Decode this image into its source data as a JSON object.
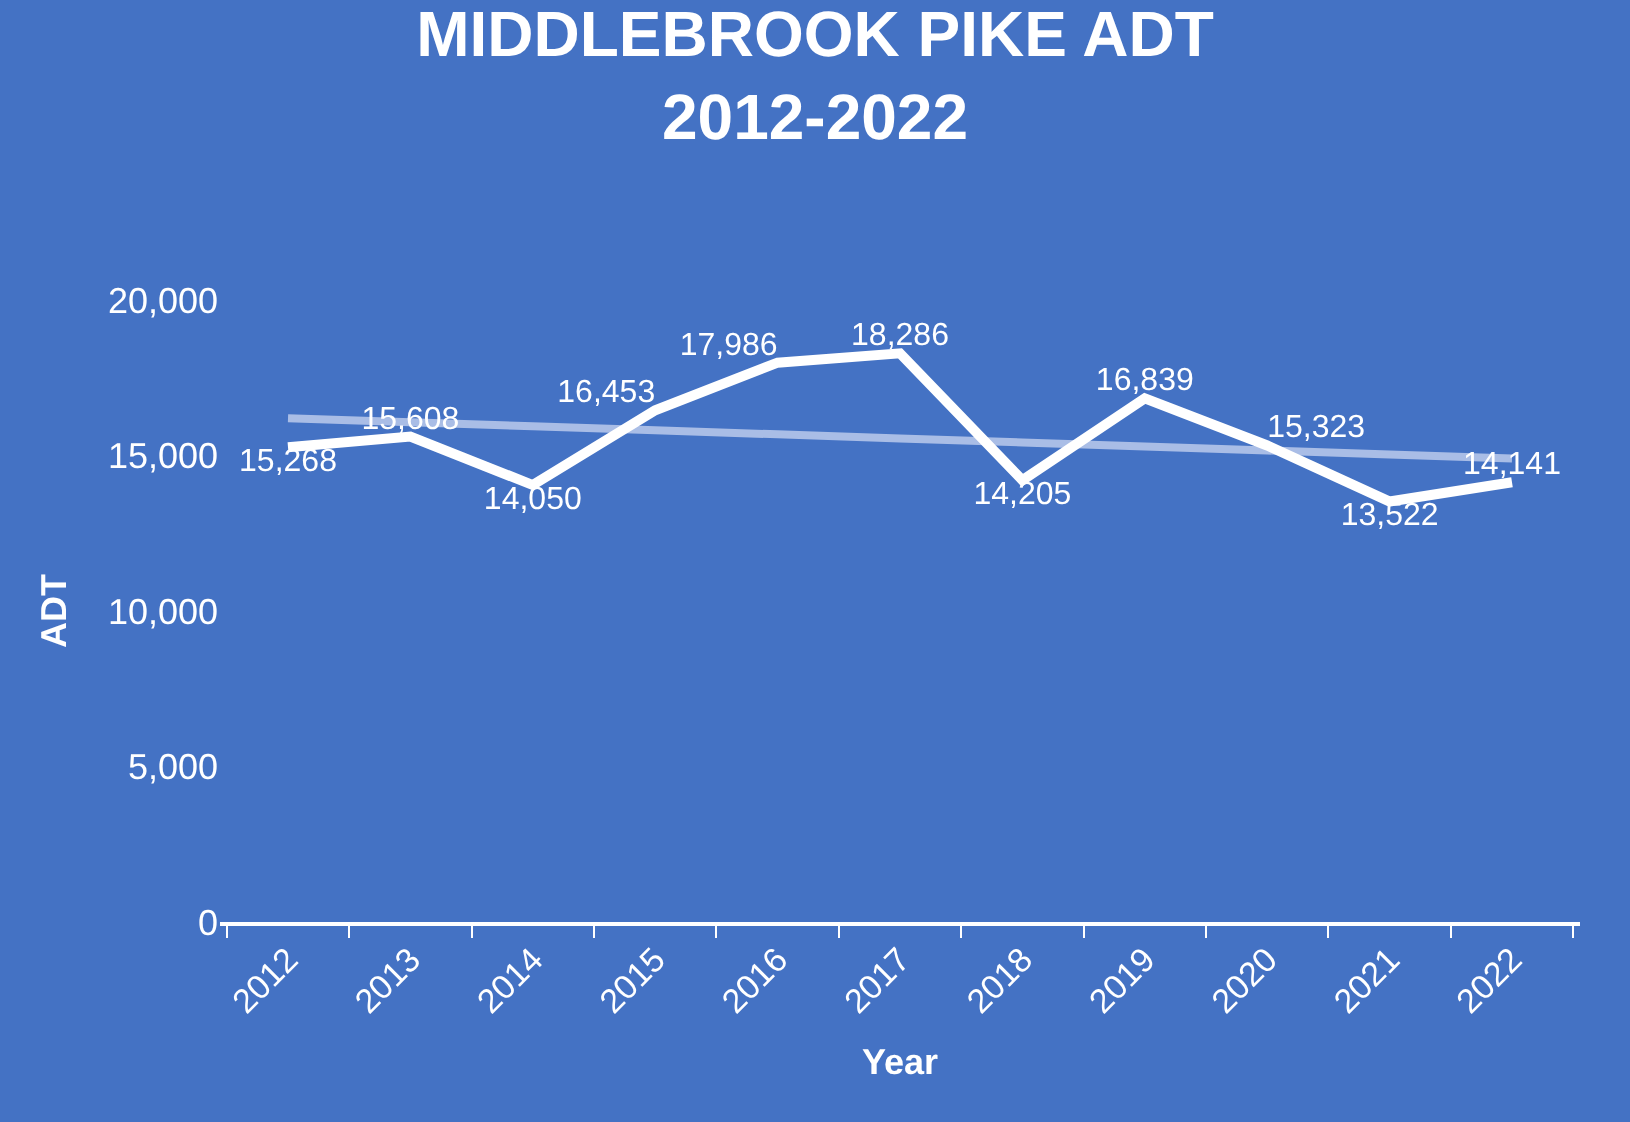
{
  "chart_data": {
    "type": "line",
    "title": "MIDDLEBROOK PIKE ADT\n2012-2022",
    "xlabel": "Year",
    "ylabel": "ADT",
    "categories": [
      "2012",
      "2013",
      "2014",
      "2015",
      "2016",
      "2017",
      "2018",
      "2019",
      "2020",
      "2021",
      "2022"
    ],
    "series": [
      {
        "color": "#ffffff",
        "values": [
          15268,
          15608,
          14050,
          16453,
          17986,
          18286,
          14205,
          16839,
          15323,
          13522,
          14141
        ],
        "value_labels": [
          "15,268",
          "15,608",
          "14,050",
          "16,453",
          "17,986",
          "18,286",
          "14,205",
          "16,839",
          "15,323",
          "13,522",
          "14,141"
        ]
      },
      {
        "type": "line",
        "color": "#a9bde6",
        "values": [
          16200,
          16070,
          15940,
          15810,
          15680,
          15550,
          15420,
          15290,
          15160,
          15030,
          14900
        ]
      }
    ],
    "ylim": [
      0,
      20000
    ],
    "yticks": [
      {
        "value": 0,
        "label": "0"
      },
      {
        "value": 5000,
        "label": "5,000"
      },
      {
        "value": 10000,
        "label": "10,000"
      },
      {
        "value": 15000,
        "label": "15,000"
      },
      {
        "value": 20000,
        "label": "20,000"
      }
    ],
    "grid": false,
    "legend": false,
    "marker": "none",
    "line_style": "solid"
  }
}
